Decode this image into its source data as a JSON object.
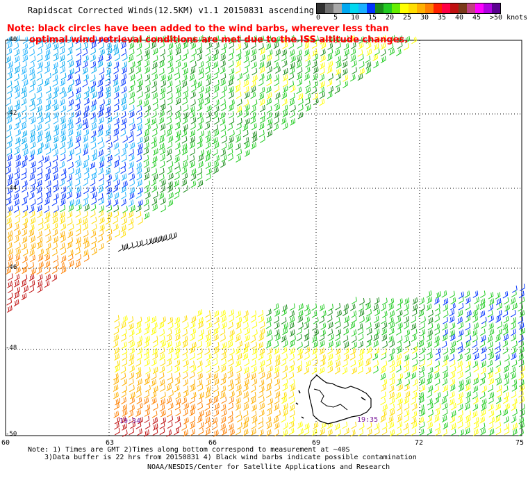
{
  "header": {
    "title": "Rapidscat Corrected Winds(12.5KM) v1.1 20150831 ascending",
    "note_line1": "Note: black circles have been added to the wind barbs, wherever less than",
    "note_line2": "optimal wind retrieval conditions are met due to the ISS altitude changes."
  },
  "colorbar": {
    "colors": [
      "#303030",
      "#707070",
      "#a8a8a8",
      "#00a8f0",
      "#00d8f0",
      "#1ab0ff",
      "#0033ff",
      "#1a8a1a",
      "#22cc22",
      "#66ee00",
      "#ffff00",
      "#ffdd00",
      "#ffb000",
      "#ff8000",
      "#ff2000",
      "#ff0044",
      "#c01010",
      "#7a3a1a",
      "#c04080",
      "#ff00ff",
      "#b000e0",
      "#5a0090"
    ],
    "tick_labels": [
      "0",
      "5",
      "10",
      "15",
      "20",
      "25",
      "30",
      "35",
      "40",
      "45",
      ">50 knots"
    ]
  },
  "map": {
    "lat_labels": [
      "-40",
      "-42",
      "-44",
      "-46",
      "-48",
      "-50"
    ],
    "lon_labels": [
      "60",
      "63",
      "66",
      "69",
      "72",
      "75"
    ],
    "lat_range": [
      -50,
      -40
    ],
    "lon_range": [
      60,
      75
    ],
    "time_labels": [
      "19:34",
      "19:35"
    ]
  },
  "footer": {
    "line1": "Note: 1) Times are GMT 2)Times along bottom correspond to measurement at ~40S",
    "line2": "3)Data buffer is 22 hrs from 20150831 4) Black wind barbs indicate possible contamination",
    "line3": "NOAA/NESDIS/Center for Satellite Applications and Research"
  }
}
